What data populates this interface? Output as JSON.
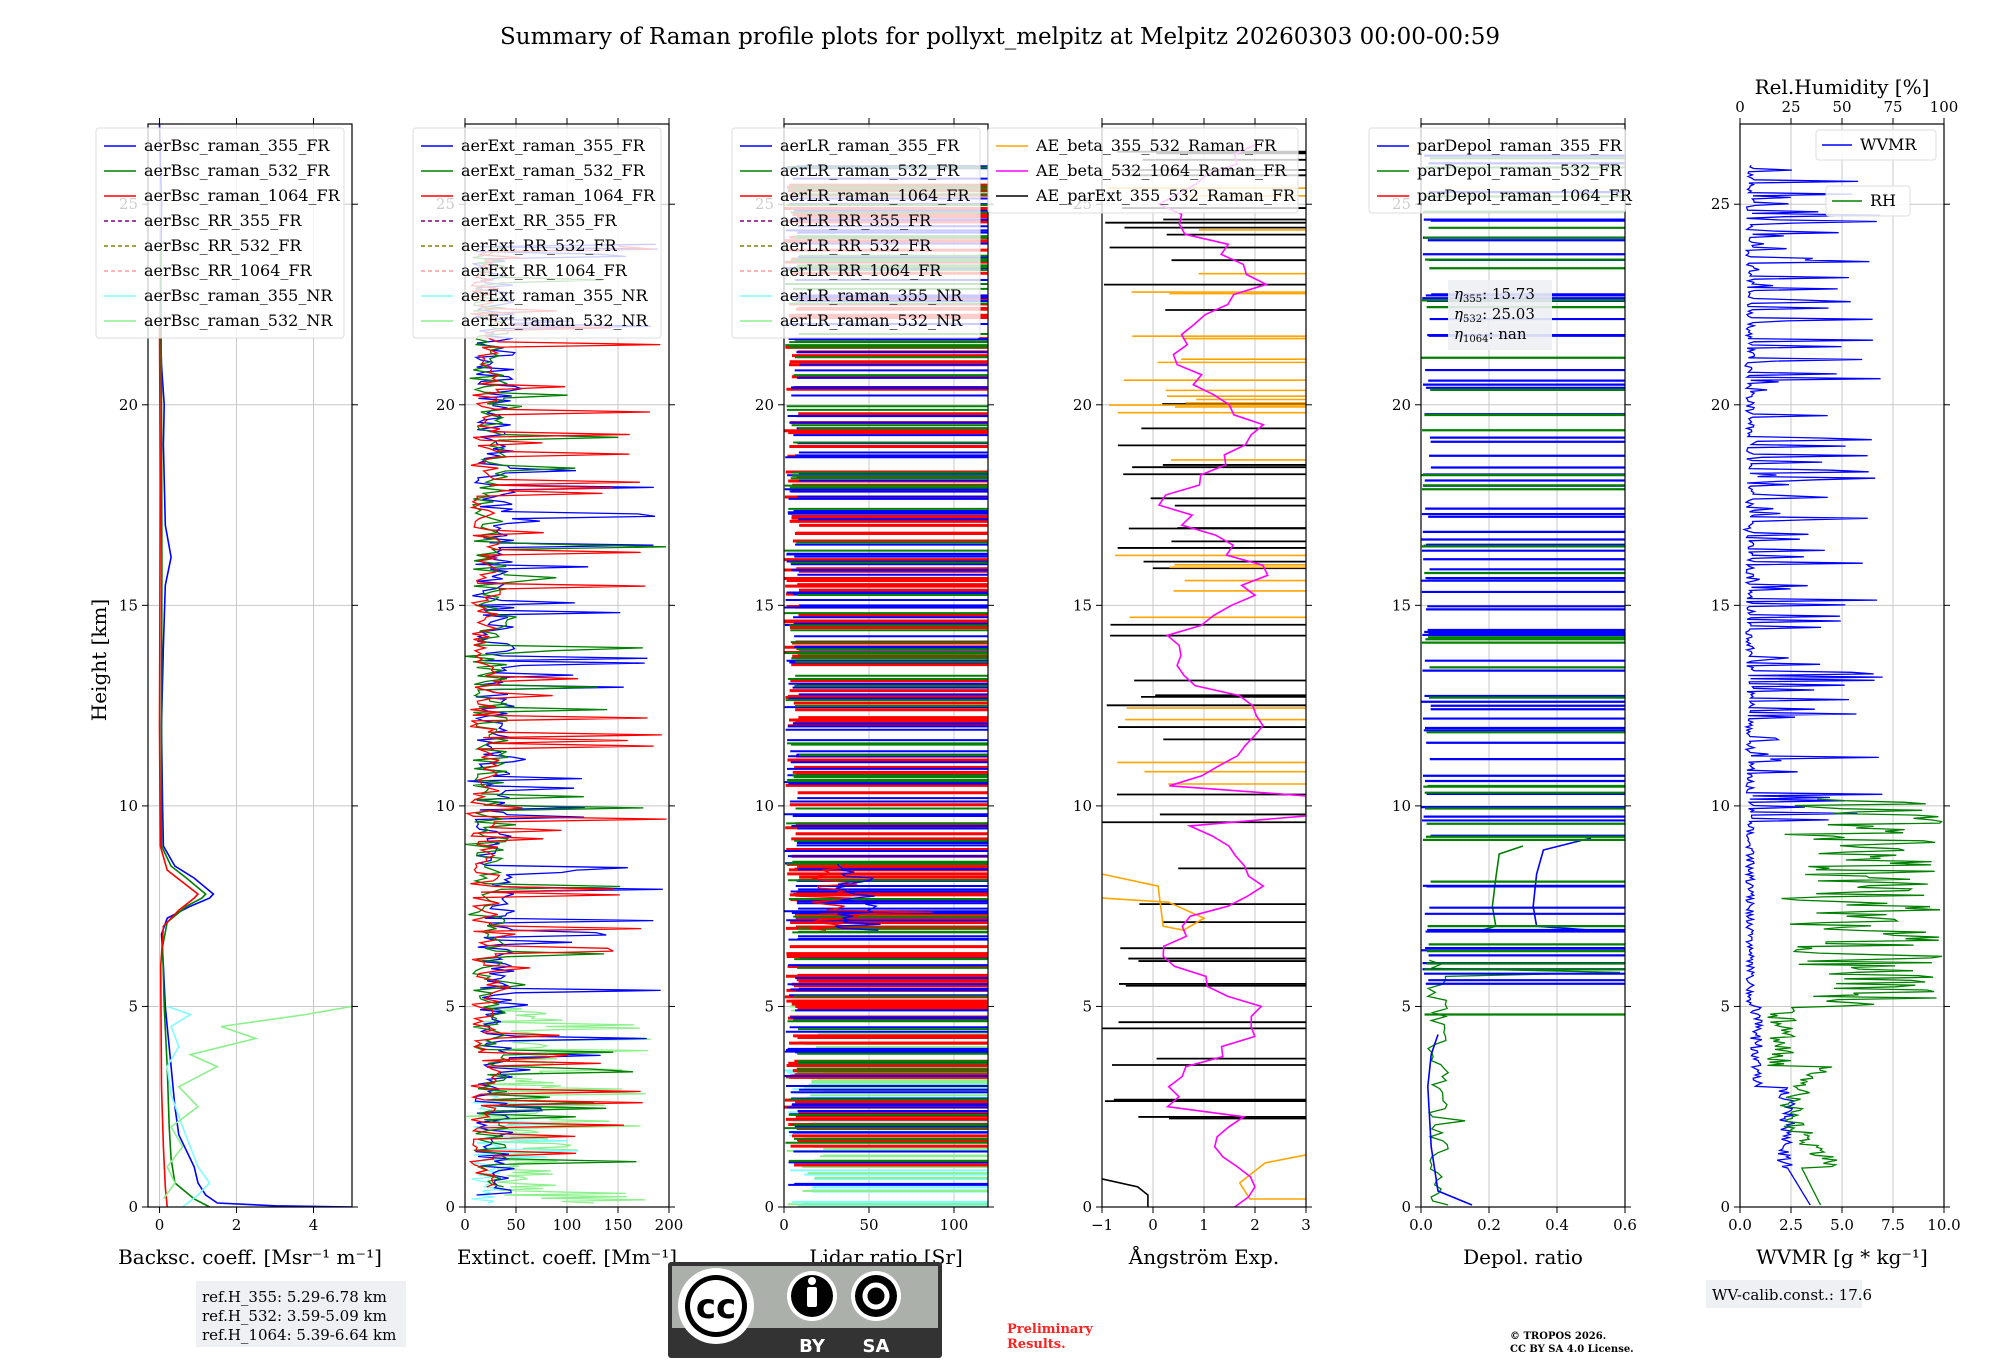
{
  "title": "Summary of Raman profile plots for pollyxt_melpitz at Melpitz 20260303 00:00-00:59",
  "y_axis_label": "Height [km]",
  "colors": {
    "blue": "#0000ff",
    "green": "#008000",
    "red": "#ff0000",
    "purple": "#800080",
    "olive": "#808000",
    "salmon": "#ff9a9a",
    "cyan": "#7ffcff",
    "lightgreen": "#8cf08c",
    "orange": "#ffa500",
    "magenta": "#ff00ff",
    "black": "#000000"
  },
  "chart_data": [
    {
      "type": "line",
      "panel": "backscatter",
      "xlabel": "Backsc. coeff. [Msr⁻¹ m⁻¹]",
      "xlim": [
        -0.3,
        5
      ],
      "ylim": [
        0,
        27
      ],
      "xticks": [
        "0",
        "2",
        "4"
      ],
      "yticks": [
        "0",
        "5",
        "10",
        "15",
        "20",
        "25"
      ],
      "legend": [
        "aerBsc_raman_355_FR",
        "aerBsc_raman_532_FR",
        "aerBsc_raman_1064_FR",
        "aerBsc_RR_355_FR",
        "aerBsc_RR_532_FR",
        "aerBsc_RR_1064_FR",
        "aerBsc_raman_355_NR",
        "aerBsc_raman_532_NR"
      ],
      "series": [
        {
          "name": "aerBsc_raman_355_FR",
          "color": "blue",
          "points": [
            [
              5.0,
              0
            ],
            [
              3.0,
              0.03
            ],
            [
              1.5,
              0.1
            ],
            [
              1.2,
              0.3
            ],
            [
              1.0,
              0.6
            ],
            [
              0.9,
              1.0
            ],
            [
              0.7,
              1.4
            ],
            [
              0.5,
              1.8
            ],
            [
              0.4,
              2.5
            ],
            [
              0.3,
              3.5
            ],
            [
              0.2,
              4.5
            ],
            [
              0.15,
              5.0
            ],
            [
              0.1,
              6.0
            ],
            [
              0.05,
              6.8
            ],
            [
              0.2,
              7.2
            ],
            [
              0.8,
              7.5
            ],
            [
              1.3,
              7.7
            ],
            [
              1.4,
              7.8
            ],
            [
              0.9,
              8.2
            ],
            [
              0.4,
              8.5
            ],
            [
              0.1,
              9.0
            ],
            [
              0.08,
              10
            ],
            [
              0.05,
              12
            ],
            [
              0.1,
              14
            ],
            [
              0.15,
              15.5
            ],
            [
              0.3,
              16.2
            ],
            [
              0.15,
              17
            ],
            [
              0.1,
              19
            ],
            [
              0.12,
              20
            ],
            [
              0.05,
              21
            ],
            [
              0.02,
              22
            ],
            [
              0.05,
              25
            ],
            [
              0.0,
              27
            ]
          ]
        },
        {
          "name": "aerBsc_raman_532_FR",
          "color": "green",
          "points": [
            [
              1.3,
              0
            ],
            [
              0.9,
              0.2
            ],
            [
              0.4,
              0.6
            ],
            [
              0.3,
              1.2
            ],
            [
              0.25,
              2.0
            ],
            [
              0.2,
              3.5
            ],
            [
              0.12,
              5.0
            ],
            [
              0.08,
              6.5
            ],
            [
              0.2,
              7.1
            ],
            [
              0.7,
              7.5
            ],
            [
              1.1,
              7.7
            ],
            [
              1.2,
              7.8
            ],
            [
              0.7,
              8.2
            ],
            [
              0.3,
              8.5
            ],
            [
              0.05,
              9.0
            ],
            [
              0.05,
              12
            ],
            [
              0.06,
              16
            ],
            [
              0.05,
              20
            ],
            [
              0.03,
              24
            ]
          ]
        },
        {
          "name": "aerBsc_raman_1064_FR",
          "color": "red",
          "points": [
            [
              0.2,
              0
            ],
            [
              0.15,
              0.5
            ],
            [
              0.1,
              1.5
            ],
            [
              0.05,
              3
            ],
            [
              0.03,
              6.0
            ],
            [
              0.1,
              7.0
            ],
            [
              0.5,
              7.4
            ],
            [
              0.9,
              7.7
            ],
            [
              1.0,
              7.8
            ],
            [
              0.6,
              8.1
            ],
            [
              0.2,
              8.4
            ],
            [
              0.02,
              9.0
            ],
            [
              0.0,
              12
            ],
            [
              0.02,
              18
            ],
            [
              0.0,
              22
            ]
          ]
        },
        {
          "name": "aerBsc_raman_355_NR",
          "color": "cyan",
          "points": [
            [
              0.6,
              0
            ],
            [
              1.0,
              0.3
            ],
            [
              1.3,
              0.6
            ],
            [
              1.0,
              1.0
            ],
            [
              0.8,
              1.5
            ],
            [
              0.6,
              2.0
            ],
            [
              0.3,
              2.8
            ],
            [
              0.2,
              3.5
            ],
            [
              0.5,
              4.0
            ],
            [
              0.3,
              4.5
            ],
            [
              0.8,
              4.8
            ],
            [
              0.2,
              5.0
            ]
          ]
        },
        {
          "name": "aerBsc_raman_532_NR",
          "color": "lightgreen",
          "points": [
            [
              0.1,
              0.2
            ],
            [
              0.4,
              0.6
            ],
            [
              0.2,
              1.0
            ],
            [
              0.6,
              1.5
            ],
            [
              0.3,
              2.0
            ],
            [
              1.0,
              2.5
            ],
            [
              0.5,
              3.0
            ],
            [
              1.5,
              3.5
            ],
            [
              0.8,
              3.8
            ],
            [
              2.5,
              4.2
            ],
            [
              1.6,
              4.5
            ],
            [
              3.8,
              4.8
            ],
            [
              5.0,
              5.0
            ]
          ]
        }
      ]
    },
    {
      "type": "line",
      "panel": "extinction",
      "xlabel": "Extinct. coeff. [Mm⁻¹]",
      "xlim": [
        0,
        200
      ],
      "ylim": [
        0,
        27
      ],
      "xticks": [
        "0",
        "50",
        "100",
        "150",
        "200"
      ],
      "yticks": [
        "0",
        "5",
        "10",
        "15",
        "20",
        "25"
      ],
      "legend": [
        "aerExt_raman_355_FR",
        "aerExt_raman_532_FR",
        "aerExt_raman_1064_FR",
        "aerExt_RR_355_FR",
        "aerExt_RR_532_FR",
        "aerExt_RR_1064_FR",
        "aerExt_raman_355_NR",
        "aerExt_raman_532_NR"
      ]
    },
    {
      "type": "line",
      "panel": "lidar_ratio",
      "xlabel": "Lidar ratio [Sr]",
      "xlim": [
        0,
        120
      ],
      "ylim": [
        0,
        27
      ],
      "xticks": [
        "0",
        "50",
        "100"
      ],
      "yticks": [
        "0",
        "5",
        "10",
        "15",
        "20",
        "25"
      ],
      "legend": [
        "aerLR_raman_355_FR",
        "aerLR_raman_532_FR",
        "aerLR_raman_1064_FR",
        "aerLR_RR_355_FR",
        "aerLR_RR_532_FR",
        "aerLR_RR_1064_FR",
        "aerLR_raman_355_NR",
        "aerLR_raman_532_NR"
      ]
    },
    {
      "type": "line",
      "panel": "angstrom",
      "xlabel": "Ångström Exp.",
      "xlim": [
        -1,
        3
      ],
      "ylim": [
        0,
        27
      ],
      "xticks": [
        "−1",
        "0",
        "1",
        "2",
        "3"
      ],
      "yticks": [
        "0",
        "5",
        "10",
        "15",
        "20",
        "25"
      ],
      "legend": [
        "AE_beta_355_532_Raman_FR",
        "AE_beta_532_1064_Raman_FR",
        "AE_parExt_355_532_Raman_FR"
      ]
    },
    {
      "type": "line",
      "panel": "depol",
      "xlabel": "Depol. ratio",
      "xlim": [
        0,
        0.6
      ],
      "ylim": [
        0,
        27
      ],
      "xticks": [
        "0.0",
        "0.2",
        "0.4",
        "0.6"
      ],
      "yticks": [
        "0",
        "5",
        "10",
        "15",
        "20",
        "25"
      ],
      "legend": [
        "parDepol_raman_355_FR",
        "parDepol_raman_532_FR",
        "parDepol_raman_1064_FR"
      ],
      "eta_labels": {
        "eta355": "15.73",
        "eta532": "25.03",
        "eta1064": "nan"
      }
    },
    {
      "type": "line",
      "panel": "wvmr",
      "xlabel": "WVMR [g * kg⁻¹]",
      "xlim": [
        0,
        10
      ],
      "ylim": [
        0,
        27
      ],
      "xticks": [
        "0.0",
        "2.5",
        "5.0",
        "7.5",
        "10.0"
      ],
      "yticks": [
        "0",
        "5",
        "10",
        "15",
        "20",
        "25"
      ],
      "top_axis_label": "Rel.Humidity [%]",
      "top_xticks": [
        "0",
        "25",
        "50",
        "75",
        "100"
      ],
      "legend": [
        "WVMR",
        "RH"
      ]
    }
  ],
  "notes": {
    "ref_h_355": "ref.H_355: 5.29-6.78 km",
    "ref_h_532": "ref.H_532: 3.59-5.09 km",
    "ref_h_1064": "ref.H_1064: 5.39-6.64 km",
    "preliminary_1": "Preliminary",
    "preliminary_2": "Results.",
    "copyright_1": "© TROPOS 2026.",
    "copyright_2": "CC BY SA 4.0 License.",
    "wv_calib": "WV-calib.const.: 17.6",
    "cc_logo_text": "cc",
    "cc_by": "BY",
    "cc_sa": "SA"
  }
}
